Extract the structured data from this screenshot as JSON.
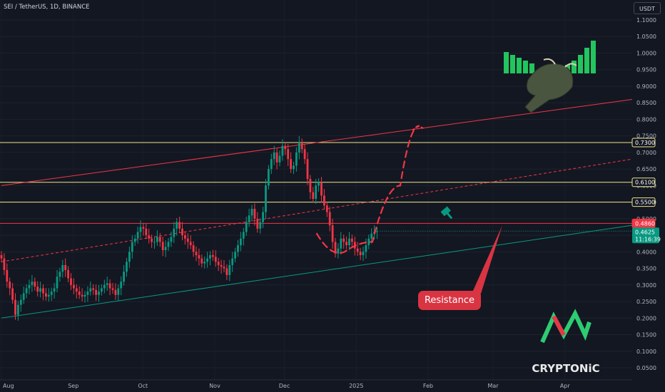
{
  "header": {
    "symbol_title": "SEI / TetherUS, 1D, BINANCE",
    "currency": "USDT"
  },
  "chart_data": {
    "type": "candlestick",
    "title": "SEI / TetherUS, 1D, BINANCE",
    "y_unit": "USDT",
    "ylim": [
      0.03,
      1.13
    ],
    "y_ticks": [
      "1.1000",
      "1.0500",
      "1.0000",
      "0.9500",
      "0.9000",
      "0.8500",
      "0.8000",
      "0.7500",
      "0.7000",
      "0.6500",
      "0.6000",
      "0.5500",
      "0.5000",
      "0.4500",
      "0.4000",
      "0.3500",
      "0.3000",
      "0.2500",
      "0.2000",
      "0.1500",
      "0.1000",
      "0.0500"
    ],
    "x_ticks": [
      "Aug",
      "Sep",
      "Oct",
      "Nov",
      "Dec",
      "2025",
      "Feb",
      "Mar",
      "Apr"
    ],
    "price_levels": [
      {
        "label": "0.7300",
        "value": 0.73,
        "color": "#f0e68c"
      },
      {
        "label": "0.6100",
        "value": 0.61,
        "color": "#f0e68c"
      },
      {
        "label": "0.5500",
        "value": 0.55,
        "color": "#f0e68c"
      },
      {
        "label": "0.4860",
        "value": 0.486,
        "color": "#f23645"
      }
    ],
    "current_price": {
      "label": "0.4625",
      "value": 0.4625,
      "countdown": "11:16:39",
      "color": "#089981"
    },
    "bull_color": "#089981",
    "bear_color": "#f23645",
    "candles_close": [
      0.38,
      0.345,
      0.31,
      0.29,
      0.255,
      0.21,
      0.24,
      0.255,
      0.275,
      0.29,
      0.3,
      0.31,
      0.295,
      0.28,
      0.29,
      0.275,
      0.265,
      0.27,
      0.28,
      0.29,
      0.325,
      0.34,
      0.36,
      0.345,
      0.32,
      0.3,
      0.29,
      0.28,
      0.27,
      0.265,
      0.27,
      0.28,
      0.29,
      0.285,
      0.27,
      0.28,
      0.29,
      0.3,
      0.305,
      0.29,
      0.285,
      0.27,
      0.29,
      0.31,
      0.34,
      0.37,
      0.4,
      0.43,
      0.44,
      0.46,
      0.475,
      0.47,
      0.45,
      0.44,
      0.43,
      0.43,
      0.445,
      0.43,
      0.405,
      0.415,
      0.43,
      0.445,
      0.47,
      0.49,
      0.47,
      0.45,
      0.44,
      0.43,
      0.42,
      0.4,
      0.39,
      0.38,
      0.365,
      0.37,
      0.38,
      0.39,
      0.385,
      0.37,
      0.36,
      0.355,
      0.35,
      0.33,
      0.36,
      0.38,
      0.4,
      0.42,
      0.44,
      0.46,
      0.49,
      0.51,
      0.53,
      0.5,
      0.47,
      0.49,
      0.52,
      0.6,
      0.65,
      0.68,
      0.7,
      0.67,
      0.69,
      0.72,
      0.71,
      0.68,
      0.65,
      0.66,
      0.7,
      0.73,
      0.71,
      0.68,
      0.62,
      0.58,
      0.56,
      0.6,
      0.61,
      0.57,
      0.54,
      0.52,
      0.48,
      0.43,
      0.395,
      0.41,
      0.44,
      0.43,
      0.42,
      0.44,
      0.43,
      0.41,
      0.4,
      0.39,
      0.4,
      0.42,
      0.44,
      0.455,
      0.46,
      0.4625
    ],
    "trendlines": [
      {
        "name": "",
        "color": "#f23645",
        "from": [
          0,
          0.6
        ],
        "to": [
          272,
          0.86
        ]
      },
      {
        "name": "",
        "color": "#f23645",
        "dashed": true,
        "from": [
          0,
          0.37
        ],
        "to": [
          272,
          0.68
        ]
      },
      {
        "name": "",
        "color": "#089981",
        "from": [
          0,
          0.2
        ],
        "to": [
          272,
          0.48
        ]
      }
    ],
    "projection": {
      "color": "#f23645",
      "points": [
        [
          136,
          0.455
        ],
        [
          148,
          0.4
        ],
        [
          160,
          0.43
        ],
        [
          172,
          0.6
        ],
        [
          180,
          0.78
        ]
      ]
    },
    "annotation": {
      "text": "Resistance",
      "target": [
        216,
        0.48
      ]
    },
    "logo_text": "CRYPTONiC"
  }
}
